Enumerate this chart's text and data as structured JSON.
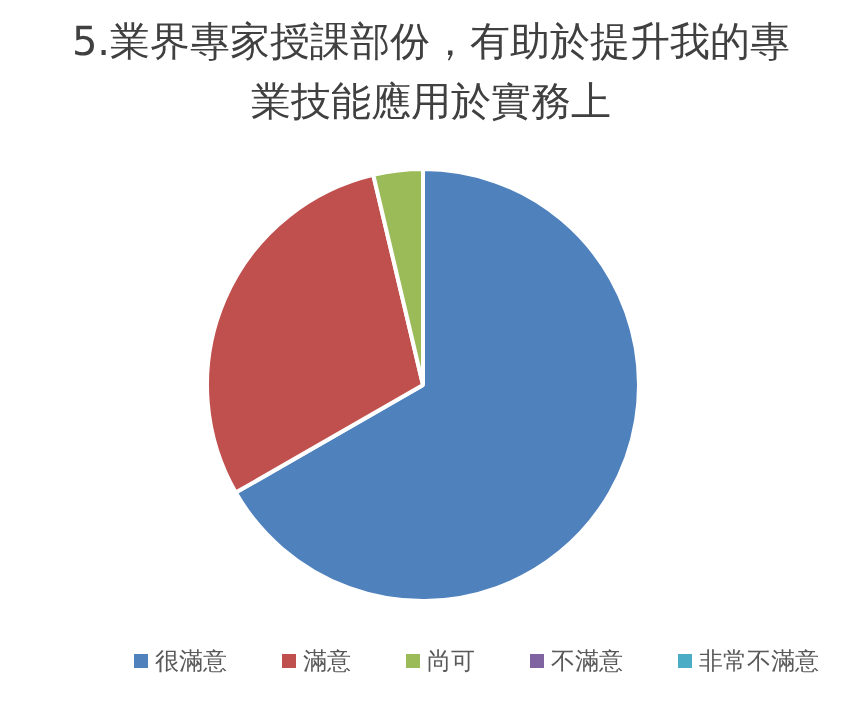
{
  "chart_data": {
    "type": "pie",
    "title": "5.業界專家授課部份，有助於提升我的專業技能應用於實務上",
    "categories": [
      "很滿意",
      "滿意",
      "尚可",
      "不滿意",
      "非常不滿意"
    ],
    "values": [
      66.7,
      29.6,
      3.7,
      0,
      0
    ],
    "colors": [
      "#4f81bd",
      "#c0504d",
      "#9bbb59",
      "#8064a2",
      "#4bacc6"
    ],
    "legend": "bottom"
  }
}
